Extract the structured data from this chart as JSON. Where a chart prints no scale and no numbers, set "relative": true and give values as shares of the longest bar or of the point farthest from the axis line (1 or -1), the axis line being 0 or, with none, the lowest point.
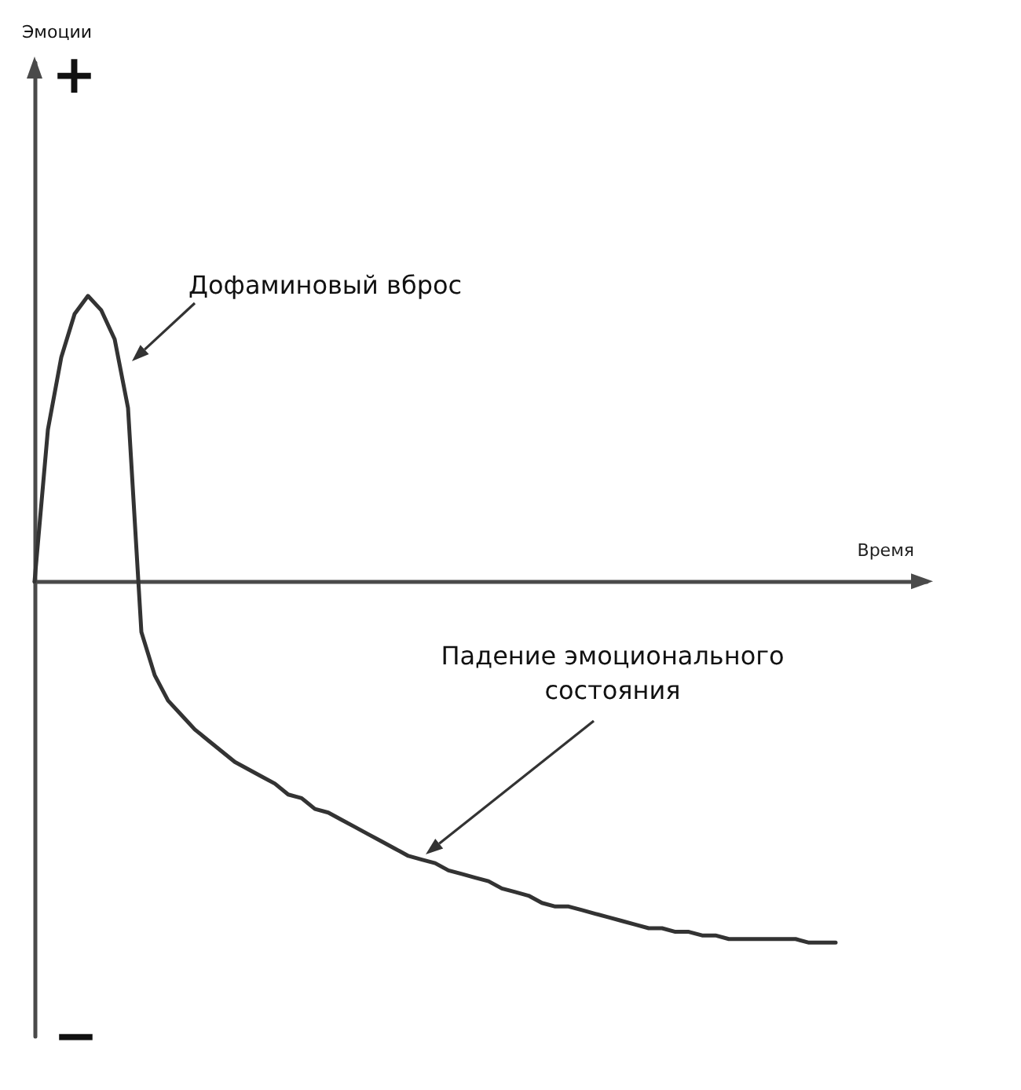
{
  "chart_data": {
    "type": "line",
    "relative": true,
    "xlabel": "Время",
    "color": "#333333",
    "categories": [
      null,
      null,
      null,
      null,
      null,
      null,
      null,
      null,
      null,
      null,
      null,
      null,
      null,
      null,
      null,
      null,
      null,
      null,
      null,
      null,
      null,
      null,
      null,
      null,
      null,
      null,
      null,
      null,
      null,
      null,
      null,
      null,
      null,
      null,
      null,
      null,
      null,
      null,
      null,
      null,
      null,
      null,
      null,
      null,
      null,
      null,
      null,
      null,
      null,
      null,
      null,
      null,
      null,
      null,
      null,
      null,
      null,
      null,
      null,
      null,
      null
    ],
    "values": [
      0,
      0.42,
      0.62,
      0.74,
      0.79,
      0.75,
      0.67,
      0.48,
      -0.14,
      -0.26,
      -0.33,
      -0.37,
      -0.41,
      -0.44,
      -0.47,
      -0.5,
      -0.52,
      -0.54,
      -0.56,
      -0.59,
      -0.6,
      -0.63,
      -0.64,
      -0.66,
      -0.68,
      -0.7,
      -0.72,
      -0.74,
      -0.76,
      -0.77,
      -0.78,
      -0.8,
      -0.81,
      -0.82,
      -0.83,
      -0.85,
      -0.86,
      -0.87,
      -0.89,
      -0.9,
      -0.9,
      -0.91,
      -0.92,
      -0.93,
      -0.94,
      -0.95,
      -0.96,
      -0.96,
      -0.97,
      -0.97,
      -0.98,
      -0.98,
      -0.99,
      -0.99,
      -0.99,
      -0.99,
      -0.99,
      -0.99,
      -1,
      -1,
      -1
    ],
    "annotations": [
      "+",
      "−",
      "Дофаминовый вброс",
      "Падение эмоционального состояния",
      "Эмоции"
    ]
  }
}
